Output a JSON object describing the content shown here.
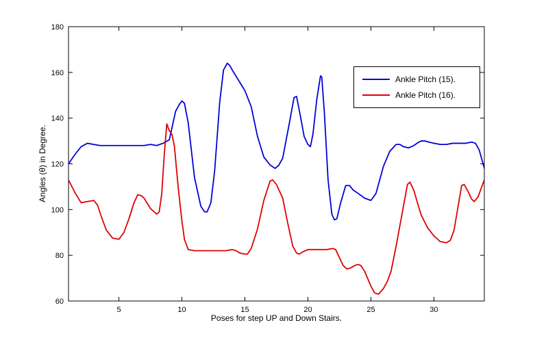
{
  "figure": {
    "background": "#ffffff",
    "plot_background": "#ffffff",
    "axis_color": "#000000"
  },
  "chart_data": {
    "type": "line",
    "title": "",
    "xlabel": "Poses for step UP and Down Stairs.",
    "ylabel": "Angles (θ) in Degree.",
    "xlim": [
      1,
      34
    ],
    "ylim": [
      60,
      180
    ],
    "xticks": [
      5,
      10,
      15,
      20,
      25,
      30
    ],
    "yticks": [
      60,
      80,
      100,
      120,
      140,
      160,
      180
    ],
    "grid": false,
    "legend": {
      "position": "upper-right",
      "border": true
    },
    "series": [
      {
        "name": "Ankle Pitch (15).",
        "color": "#0000d9",
        "points": [
          [
            1,
            120
          ],
          [
            1.5,
            124
          ],
          [
            2,
            127.5
          ],
          [
            2.5,
            129
          ],
          [
            3,
            128.5
          ],
          [
            3.5,
            128
          ],
          [
            4,
            128
          ],
          [
            5,
            128
          ],
          [
            6,
            128
          ],
          [
            7,
            128
          ],
          [
            7.5,
            128.5
          ],
          [
            8,
            128
          ],
          [
            8.5,
            129
          ],
          [
            9,
            130.5
          ],
          [
            9.5,
            143
          ],
          [
            9.8,
            146
          ],
          [
            10,
            147.5
          ],
          [
            10.2,
            146.5
          ],
          [
            10.5,
            138
          ],
          [
            11,
            114
          ],
          [
            11.5,
            101.5
          ],
          [
            11.8,
            99
          ],
          [
            12,
            99
          ],
          [
            12.3,
            103
          ],
          [
            12.6,
            117
          ],
          [
            13,
            147
          ],
          [
            13.3,
            161
          ],
          [
            13.6,
            164
          ],
          [
            13.8,
            163
          ],
          [
            14,
            161
          ],
          [
            14.5,
            156.5
          ],
          [
            15,
            152
          ],
          [
            15.5,
            145
          ],
          [
            16,
            132
          ],
          [
            16.5,
            123
          ],
          [
            17,
            119.5
          ],
          [
            17.4,
            118
          ],
          [
            17.7,
            119.5
          ],
          [
            18,
            122.5
          ],
          [
            18.5,
            137
          ],
          [
            18.9,
            149
          ],
          [
            19.1,
            149.5
          ],
          [
            19.4,
            141
          ],
          [
            19.7,
            132
          ],
          [
            20,
            128.5
          ],
          [
            20.2,
            127.5
          ],
          [
            20.4,
            133
          ],
          [
            20.7,
            148
          ],
          [
            21,
            158.5
          ],
          [
            21.1,
            158
          ],
          [
            21.3,
            143
          ],
          [
            21.6,
            113
          ],
          [
            21.9,
            98
          ],
          [
            22.1,
            95.5
          ],
          [
            22.3,
            96
          ],
          [
            22.6,
            103
          ],
          [
            23,
            110.5
          ],
          [
            23.3,
            110.5
          ],
          [
            23.6,
            108.5
          ],
          [
            24,
            107
          ],
          [
            24.5,
            105
          ],
          [
            25,
            104
          ],
          [
            25.4,
            107
          ],
          [
            26,
            119
          ],
          [
            26.5,
            125.5
          ],
          [
            27,
            128.5
          ],
          [
            27.3,
            128.5
          ],
          [
            27.6,
            127.5
          ],
          [
            28,
            127
          ],
          [
            28.4,
            128
          ],
          [
            28.8,
            129.5
          ],
          [
            29,
            130
          ],
          [
            29.3,
            130
          ],
          [
            29.6,
            129.5
          ],
          [
            30,
            129
          ],
          [
            30.5,
            128.5
          ],
          [
            31,
            128.5
          ],
          [
            31.5,
            129
          ],
          [
            32,
            129
          ],
          [
            32.5,
            129
          ],
          [
            33,
            129.5
          ],
          [
            33.3,
            129
          ],
          [
            33.6,
            126
          ],
          [
            34,
            118
          ]
        ]
      },
      {
        "name": "Ankle Pitch (16).",
        "color": "#dd0000",
        "points": [
          [
            1,
            113
          ],
          [
            1.5,
            107.5
          ],
          [
            2,
            103
          ],
          [
            2.5,
            103.5
          ],
          [
            3,
            104
          ],
          [
            3.3,
            102
          ],
          [
            3.6,
            97
          ],
          [
            4,
            91
          ],
          [
            4.5,
            87.5
          ],
          [
            5,
            87
          ],
          [
            5.4,
            90
          ],
          [
            5.8,
            96
          ],
          [
            6.2,
            103
          ],
          [
            6.5,
            106.5
          ],
          [
            6.8,
            106
          ],
          [
            7,
            105
          ],
          [
            7.5,
            100.5
          ],
          [
            8,
            98
          ],
          [
            8.2,
            99
          ],
          [
            8.4,
            107
          ],
          [
            8.6,
            124
          ],
          [
            8.8,
            137.5
          ],
          [
            9,
            134.5
          ],
          [
            9.2,
            133
          ],
          [
            9.4,
            128
          ],
          [
            9.7,
            110
          ],
          [
            10,
            95
          ],
          [
            10.2,
            87
          ],
          [
            10.5,
            82.5
          ],
          [
            11,
            82
          ],
          [
            11.5,
            82
          ],
          [
            12,
            82
          ],
          [
            12.5,
            82
          ],
          [
            13,
            82
          ],
          [
            13.5,
            82
          ],
          [
            14,
            82.5
          ],
          [
            14.3,
            82
          ],
          [
            14.6,
            81
          ],
          [
            15,
            80.5
          ],
          [
            15.2,
            80.5
          ],
          [
            15.5,
            83
          ],
          [
            16,
            91.5
          ],
          [
            16.5,
            104
          ],
          [
            17,
            112.5
          ],
          [
            17.2,
            113
          ],
          [
            17.5,
            111
          ],
          [
            18,
            105
          ],
          [
            18.4,
            94
          ],
          [
            18.8,
            84
          ],
          [
            19.1,
            81
          ],
          [
            19.3,
            80.5
          ],
          [
            19.6,
            81.5
          ],
          [
            20,
            82.5
          ],
          [
            20.5,
            82.5
          ],
          [
            21,
            82.5
          ],
          [
            21.5,
            82.5
          ],
          [
            22,
            83
          ],
          [
            22.2,
            82.5
          ],
          [
            22.5,
            79
          ],
          [
            22.8,
            75.5
          ],
          [
            23.1,
            74
          ],
          [
            23.4,
            74.5
          ],
          [
            23.7,
            75.5
          ],
          [
            24,
            76
          ],
          [
            24.2,
            75.5
          ],
          [
            24.5,
            73
          ],
          [
            25,
            66.5
          ],
          [
            25.3,
            63.5
          ],
          [
            25.6,
            63
          ],
          [
            26,
            65.5
          ],
          [
            26.3,
            68.5
          ],
          [
            26.6,
            73
          ],
          [
            27,
            84
          ],
          [
            27.5,
            99
          ],
          [
            27.9,
            111
          ],
          [
            28.1,
            112
          ],
          [
            28.4,
            108.5
          ],
          [
            28.8,
            101
          ],
          [
            29,
            97.5
          ],
          [
            29.5,
            92
          ],
          [
            30,
            88.5
          ],
          [
            30.5,
            86
          ],
          [
            31,
            85.5
          ],
          [
            31.3,
            86.5
          ],
          [
            31.6,
            91
          ],
          [
            32,
            104
          ],
          [
            32.2,
            110.5
          ],
          [
            32.4,
            111
          ],
          [
            32.7,
            108
          ],
          [
            33,
            104.5
          ],
          [
            33.2,
            103.5
          ],
          [
            33.5,
            105.5
          ],
          [
            34,
            113
          ]
        ]
      }
    ]
  }
}
